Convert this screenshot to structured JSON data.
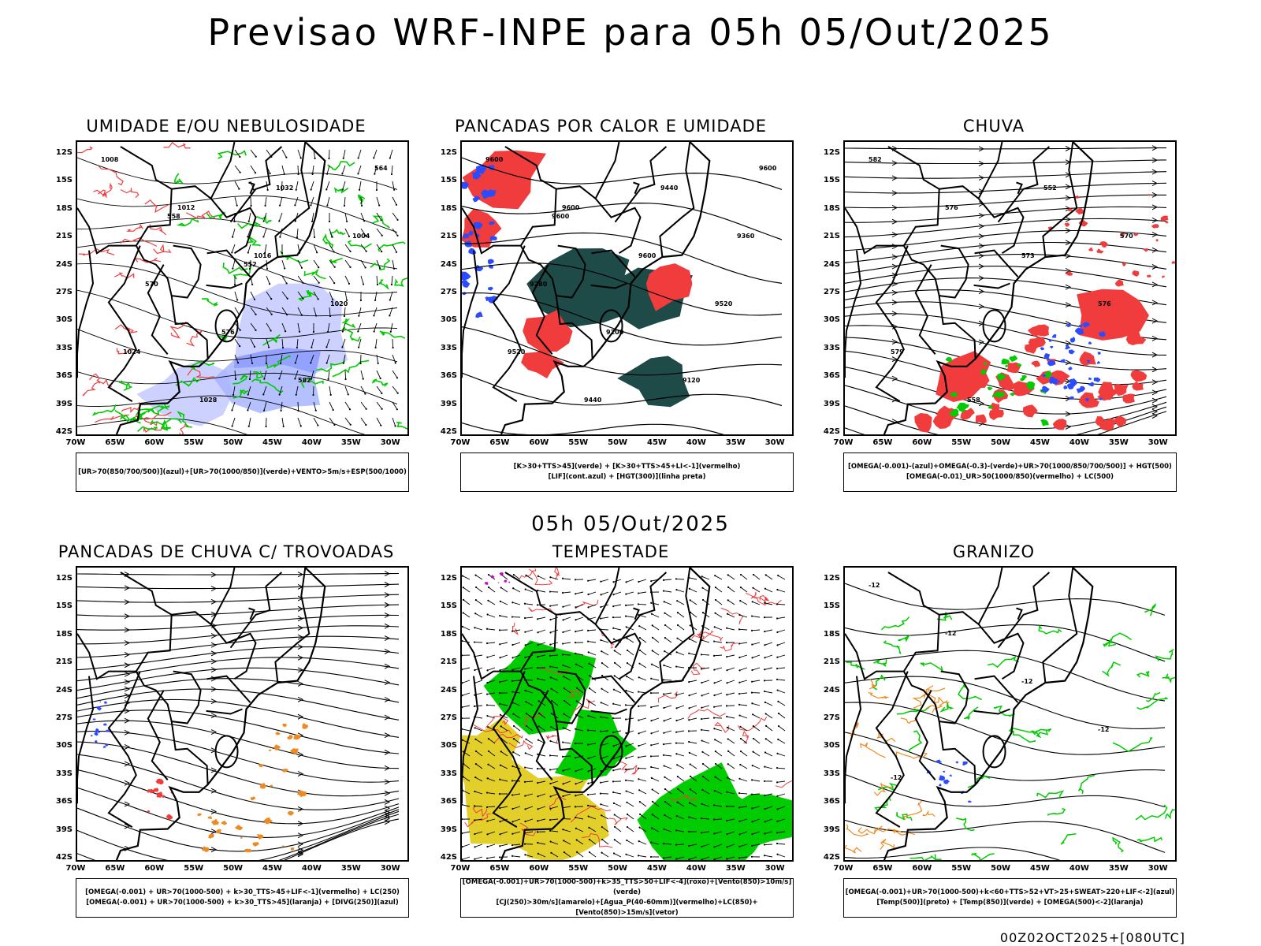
{
  "header": {
    "title": "Previsao WRF-INPE  para 05h 05/Out/2025",
    "mid_title": "05h 05/Out/2025"
  },
  "footer": {
    "run": "00Z02OCT2025+[080UTC]"
  },
  "axes": {
    "lat_labels": [
      "12S",
      "15S",
      "18S",
      "21S",
      "24S",
      "27S",
      "30S",
      "33S",
      "36S",
      "39S",
      "42S"
    ],
    "lon_labels": [
      "70W",
      "65W",
      "60W",
      "55W",
      "50W",
      "45W",
      "40W",
      "35W",
      "30W"
    ]
  },
  "panels": [
    {
      "title": "UMIDADE E/OU NEBULOSIDADE",
      "legend": [
        "[UR>70(850/700/500)](azul)+[UR>70(1000/850)](verde)+VENTO>5m/s+ESP(500/1000)"
      ],
      "contour_labels": [
        "1008",
        "1012",
        "1016",
        "1020",
        "1024",
        "1028",
        "1032",
        "1004",
        "570",
        "576",
        "582",
        "564",
        "558",
        "552"
      ]
    },
    {
      "title": "PANCADAS POR CALOR E UMIDADE",
      "legend": [
        "[K>30+TTS>45](verde) + [K>30+TTS>45+LI<-1](vermelho)",
        "[LIF](cont.azul) + [HGT(300)](linha preta)"
      ],
      "contour_labels": [
        "9600",
        "9600",
        "9600",
        "9520",
        "9520",
        "9440",
        "9440",
        "9360",
        "9280",
        "9200",
        "9120",
        "9600",
        "9600"
      ]
    },
    {
      "title": "CHUVA",
      "legend": [
        "[OMEGA(-0.001)-(azul)+OMEGA(-0.3)-(verde)+UR>70(1000/850/700/500)] + HGT(500)",
        "[OMEGA(-0.01)_UR>50(1000/850)(vermelho) + LC(500)"
      ],
      "contour_labels": [
        "582",
        "576",
        "573",
        "576",
        "579",
        "558",
        "552",
        "570"
      ]
    },
    {
      "title": "PANCADAS DE CHUVA C/ TROVOADAS",
      "legend": [
        "[OMEGA(-0.001) + UR>70(1000-500) + k>30_TTS>45+LIF<-1](vermelho) + LC(250)",
        "[OMEGA(-0.001) + UR>70(1000-500) + k>30_TTS>45](laranja) + [DIVG(250)](azul)"
      ],
      "contour_labels": []
    },
    {
      "title": "TEMPESTADE",
      "legend": [
        "[OMEGA(-0.001)+UR>70(1000-500)+k>35_TTS>50+LIF<-4](roxo)+[Vento(850)>10m/s](verde)",
        "[CJ(250)>30m/s](amarelo)+[Agua_P(40-60mm)](vermelho)+LC(850)+[Vento(850)>15m/s](vetor)"
      ],
      "contour_labels": []
    },
    {
      "title": "GRANIZO",
      "legend": [
        "[OMEGA(-0.001)+UR>70(1000-500)+k<60+TTS>52+VT>25+SWEAT>220+LIF<-2](azul)",
        "[Temp(500)](preto) + [Temp(850)](verde) + [OMEGA(500)<-2](laranja)"
      ],
      "contour_labels": [
        "-12",
        "-12",
        "-12",
        "-12",
        "-12"
      ]
    }
  ],
  "colors": {
    "red": "#f03c3c",
    "green": "#00cc00",
    "blue": "#2b4bff",
    "lavender": "#aab2ff",
    "darkteal": "#1e4a48",
    "yellow": "#e3cf2a",
    "orange": "#ee8a22",
    "purple": "#cc00cc"
  }
}
